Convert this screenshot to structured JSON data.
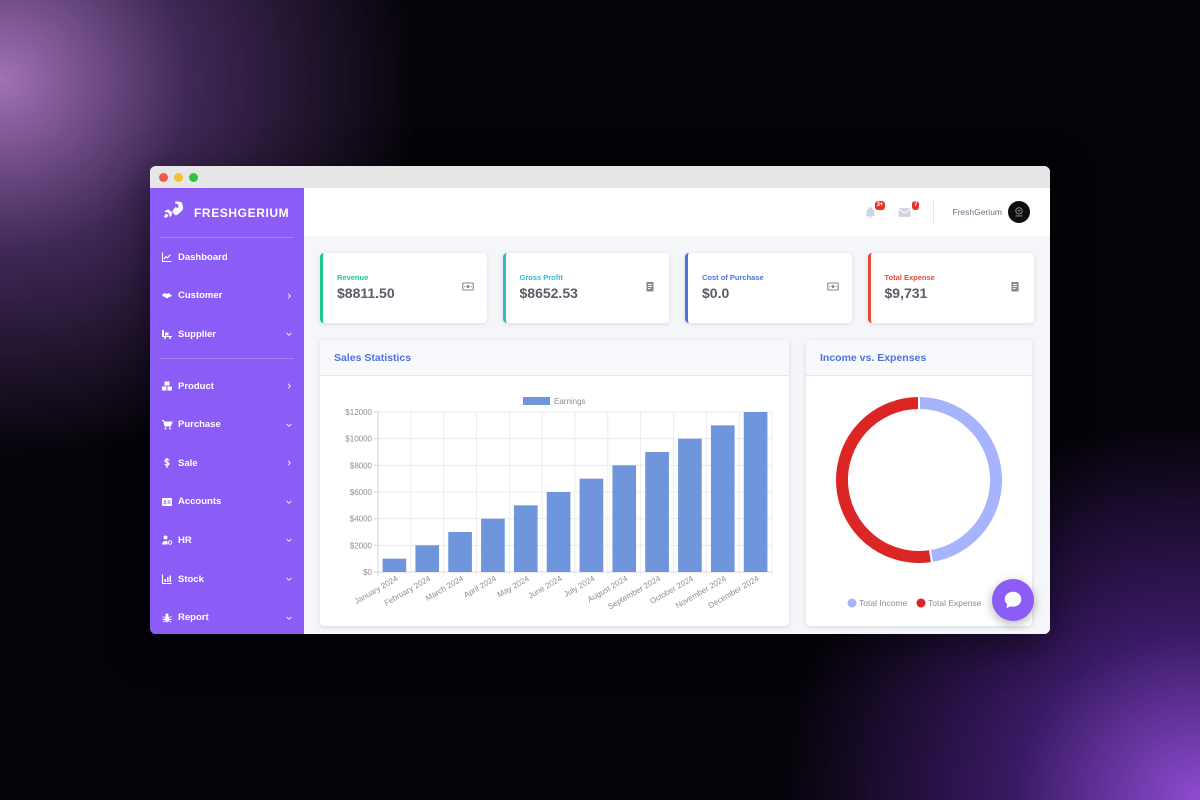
{
  "brand": {
    "name": "FRESHGERIUM"
  },
  "sidebar": {
    "items": [
      {
        "label": "Dashboard",
        "icon": "chart-area-icon",
        "caret": "none"
      },
      {
        "label": "Customer",
        "icon": "handshake-icon",
        "caret": "right"
      },
      {
        "label": "Supplier",
        "icon": "truck-loading-icon",
        "caret": "down"
      },
      {
        "label": "Product",
        "icon": "boxes-icon",
        "caret": "right"
      },
      {
        "label": "Purchase",
        "icon": "shopping-cart-icon",
        "caret": "down"
      },
      {
        "label": "Sale",
        "icon": "dollar-icon",
        "caret": "right"
      },
      {
        "label": "Accounts",
        "icon": "id-card-icon",
        "caret": "down"
      },
      {
        "label": "HR",
        "icon": "user-cog-icon",
        "caret": "down"
      },
      {
        "label": "Stock",
        "icon": "chart-bar-icon",
        "caret": "down"
      },
      {
        "label": "Report",
        "icon": "bug-icon",
        "caret": "down"
      }
    ]
  },
  "topbar": {
    "alerts_badge": "3+",
    "messages_badge": "7",
    "username": "FreshGerium"
  },
  "cards": [
    {
      "label": "Revenue",
      "value": "$8811.50",
      "color": "#1cc88a",
      "icon": "money-bill-icon"
    },
    {
      "label": "Gross Profit",
      "value": "$8652.53",
      "color": "#36b9cc",
      "icon": "receipt-icon"
    },
    {
      "label": "Cost of Purchase",
      "value": "$0.0",
      "color": "#4e73df",
      "icon": "money-bill-icon"
    },
    {
      "label": "Total Expense",
      "value": "$9,731",
      "color": "#e74a3b",
      "icon": "receipt-icon"
    }
  ],
  "sales_panel": {
    "title": "Sales Statistics"
  },
  "income_panel": {
    "title": "Income vs. Expenses"
  },
  "chart_data": [
    {
      "type": "bar",
      "title": "Sales Statistics",
      "categories": [
        "January 2024",
        "February 2024",
        "March 2024",
        "April 2024",
        "May 2024",
        "June 2024",
        "July 2024",
        "August 2024",
        "September 2024",
        "October 2024",
        "November 2024",
        "December 2024"
      ],
      "series": [
        {
          "name": "Earnings",
          "values": [
            1000,
            2000,
            3000,
            4000,
            5000,
            6000,
            7000,
            8000,
            9000,
            10000,
            11000,
            12000
          ],
          "color": "#6f95dc"
        }
      ],
      "yticks": [
        "$0",
        "$2000",
        "$4000",
        "$6000",
        "$8000",
        "$10000",
        "$12000"
      ],
      "ylim": [
        0,
        12000
      ],
      "grid": true,
      "legend": "top"
    },
    {
      "type": "pie",
      "title": "Income vs. Expenses",
      "labels": [
        "Total Income",
        "Total Expense"
      ],
      "values": [
        8811.5,
        9731
      ],
      "colors": [
        "#a5b4fc",
        "#dc2626"
      ],
      "legend": "bottom"
    }
  ]
}
